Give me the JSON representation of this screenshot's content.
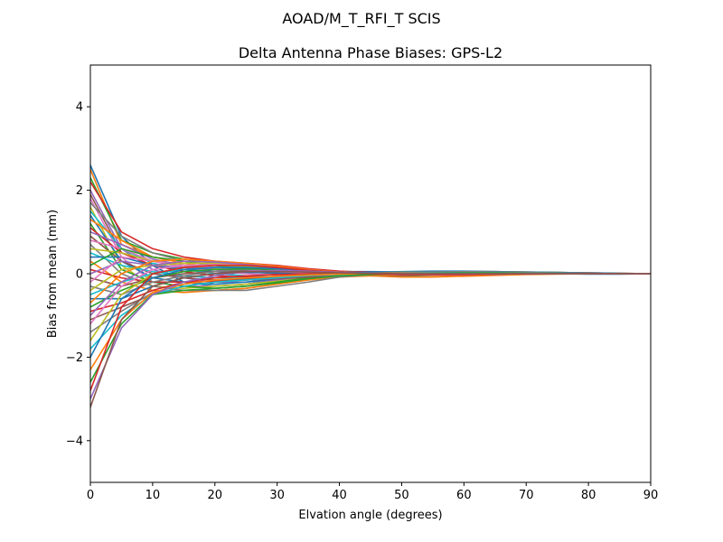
{
  "figure": {
    "suptitle": "AOAD/M_T_RFI_T  SCIS"
  },
  "chart_data": {
    "type": "line",
    "title": "Delta Antenna Phase Biases: GPS-L2",
    "xlabel": "Elvation angle (degrees)",
    "ylabel": "Bias from mean (mm)",
    "xlim": [
      0,
      90
    ],
    "ylim": [
      -5,
      5
    ],
    "xticks": [
      0,
      10,
      20,
      30,
      40,
      50,
      60,
      70,
      80,
      90
    ],
    "yticks": [
      -4,
      -2,
      0,
      2,
      4
    ],
    "ytick_labels": [
      "−4",
      "−2",
      "0",
      "2",
      "4"
    ],
    "grid": false,
    "legend": "none",
    "x": [
      0,
      5,
      10,
      15,
      20,
      25,
      30,
      35,
      40,
      45,
      50,
      55,
      60,
      65,
      70,
      75,
      80,
      85,
      90
    ],
    "palette": [
      "#1f77b4",
      "#ff7f0e",
      "#2ca02c",
      "#d62728",
      "#9467bd",
      "#8c564b",
      "#e377c2",
      "#7f7f7f",
      "#bcbd22",
      "#17becf"
    ],
    "series": [
      {
        "values": [
          2.6,
          0.9,
          0.2,
          -0.2,
          -0.3,
          -0.25,
          -0.15,
          -0.05,
          0.05,
          0.05,
          0.04,
          0.03,
          0.03,
          0.02,
          0.01,
          0.0,
          -0.01,
          -0.01,
          0.0
        ]
      },
      {
        "values": [
          2.5,
          0.7,
          0.4,
          0.3,
          0.2,
          0.15,
          0.1,
          0.05,
          0.0,
          -0.05,
          -0.08,
          -0.08,
          -0.06,
          -0.04,
          -0.02,
          -0.01,
          0.0,
          0.0,
          0.0
        ]
      },
      {
        "values": [
          2.3,
          0.8,
          0.5,
          0.35,
          0.25,
          0.2,
          0.15,
          0.1,
          0.05,
          0.02,
          0.0,
          0.0,
          0.01,
          0.01,
          0.01,
          0.01,
          0.0,
          0.0,
          0.0
        ]
      },
      {
        "values": [
          2.2,
          1.0,
          0.6,
          0.4,
          0.3,
          0.25,
          0.2,
          0.12,
          0.06,
          0.03,
          0.03,
          0.04,
          0.05,
          0.05,
          0.04,
          0.03,
          0.02,
          0.01,
          0.0
        ]
      },
      {
        "values": [
          2.0,
          0.6,
          0.1,
          -0.1,
          -0.2,
          -0.2,
          -0.15,
          -0.08,
          -0.02,
          0.0,
          0.02,
          0.03,
          0.03,
          0.03,
          0.02,
          0.01,
          0.0,
          0.0,
          0.0
        ]
      },
      {
        "values": [
          1.9,
          0.5,
          0.3,
          0.2,
          0.1,
          0.05,
          0.0,
          -0.02,
          -0.04,
          -0.05,
          -0.05,
          -0.04,
          -0.03,
          -0.02,
          -0.01,
          0.0,
          0.0,
          0.0,
          0.0
        ]
      },
      {
        "values": [
          1.8,
          0.4,
          -0.2,
          -0.3,
          -0.3,
          -0.25,
          -0.2,
          -0.12,
          -0.06,
          -0.03,
          -0.02,
          -0.02,
          -0.02,
          -0.01,
          -0.01,
          0.0,
          0.0,
          0.0,
          0.0
        ]
      },
      {
        "values": [
          1.7,
          0.9,
          0.5,
          0.3,
          0.2,
          0.1,
          0.05,
          0.02,
          0.0,
          -0.02,
          -0.03,
          -0.03,
          -0.02,
          -0.01,
          0.0,
          0.0,
          0.0,
          0.0,
          0.0
        ]
      },
      {
        "values": [
          1.6,
          0.2,
          -0.3,
          -0.35,
          -0.3,
          -0.25,
          -0.18,
          -0.1,
          -0.04,
          0.0,
          0.02,
          0.04,
          0.05,
          0.05,
          0.04,
          0.03,
          0.02,
          0.01,
          0.0
        ]
      },
      {
        "values": [
          1.5,
          0.6,
          0.25,
          0.1,
          0.0,
          -0.05,
          -0.08,
          -0.08,
          -0.05,
          -0.03,
          -0.01,
          0.0,
          0.01,
          0.01,
          0.01,
          0.0,
          0.0,
          0.0,
          0.0
        ]
      },
      {
        "values": [
          1.4,
          0.3,
          -0.1,
          -0.2,
          -0.25,
          -0.2,
          -0.12,
          -0.06,
          0.0,
          0.03,
          0.05,
          0.06,
          0.06,
          0.05,
          0.04,
          0.03,
          0.02,
          0.01,
          0.0
        ]
      },
      {
        "values": [
          1.3,
          0.8,
          0.4,
          0.25,
          0.15,
          0.1,
          0.06,
          0.03,
          0.0,
          -0.01,
          -0.02,
          -0.02,
          -0.01,
          0.0,
          0.0,
          0.0,
          0.0,
          0.0,
          0.0
        ]
      },
      {
        "values": [
          1.2,
          0.1,
          -0.2,
          -0.3,
          -0.35,
          -0.3,
          -0.2,
          -0.1,
          -0.05,
          -0.04,
          -0.04,
          -0.03,
          -0.02,
          -0.01,
          0.0,
          0.0,
          0.0,
          0.0,
          0.0
        ]
      },
      {
        "values": [
          1.1,
          0.5,
          0.2,
          0.05,
          -0.05,
          -0.08,
          -0.08,
          -0.05,
          -0.02,
          0.0,
          0.02,
          0.03,
          0.03,
          0.02,
          0.02,
          0.01,
          0.0,
          0.0,
          0.0
        ]
      },
      {
        "values": [
          1.0,
          0.7,
          0.35,
          0.2,
          0.1,
          0.05,
          0.02,
          0.0,
          -0.02,
          -0.03,
          -0.03,
          -0.02,
          -0.01,
          0.0,
          0.0,
          0.0,
          0.0,
          0.0,
          0.0
        ]
      },
      {
        "values": [
          0.9,
          0.3,
          0.0,
          -0.1,
          -0.15,
          -0.15,
          -0.12,
          -0.08,
          -0.04,
          -0.02,
          0.0,
          0.01,
          0.02,
          0.02,
          0.02,
          0.01,
          0.01,
          0.0,
          0.0
        ]
      },
      {
        "values": [
          0.8,
          0.6,
          0.3,
          0.15,
          0.05,
          0.0,
          -0.03,
          -0.04,
          -0.04,
          -0.03,
          -0.02,
          -0.01,
          0.0,
          0.0,
          0.0,
          0.0,
          0.0,
          0.0,
          0.0
        ]
      },
      {
        "values": [
          0.7,
          0.0,
          -0.3,
          -0.4,
          -0.4,
          -0.35,
          -0.25,
          -0.15,
          -0.06,
          -0.02,
          0.0,
          0.01,
          0.02,
          0.02,
          0.01,
          0.01,
          0.0,
          0.0,
          0.0
        ]
      },
      {
        "values": [
          0.6,
          0.5,
          0.3,
          0.2,
          0.12,
          0.08,
          0.05,
          0.03,
          0.02,
          0.02,
          0.03,
          0.03,
          0.03,
          0.02,
          0.02,
          0.01,
          0.0,
          0.0,
          0.0
        ]
      },
      {
        "values": [
          0.5,
          0.2,
          0.05,
          -0.05,
          -0.1,
          -0.1,
          -0.08,
          -0.05,
          -0.03,
          -0.02,
          -0.02,
          -0.02,
          -0.01,
          -0.01,
          0.0,
          0.0,
          0.0,
          0.0,
          0.0
        ]
      },
      {
        "values": [
          0.4,
          0.4,
          0.2,
          0.1,
          0.05,
          0.03,
          0.02,
          0.01,
          0.0,
          0.0,
          0.0,
          0.0,
          0.0,
          0.0,
          0.0,
          0.0,
          0.0,
          0.0,
          0.0
        ]
      },
      {
        "values": [
          0.3,
          -0.2,
          -0.4,
          -0.45,
          -0.4,
          -0.35,
          -0.25,
          -0.15,
          -0.08,
          -0.05,
          -0.03,
          -0.02,
          -0.01,
          0.0,
          0.0,
          0.0,
          0.0,
          0.0,
          0.0
        ]
      },
      {
        "values": [
          0.2,
          0.6,
          0.4,
          0.3,
          0.2,
          0.15,
          0.1,
          0.05,
          0.02,
          0.0,
          -0.01,
          -0.01,
          0.0,
          0.0,
          0.0,
          0.0,
          0.0,
          0.0,
          0.0
        ]
      },
      {
        "values": [
          0.1,
          -0.1,
          -0.2,
          -0.2,
          -0.18,
          -0.15,
          -0.1,
          -0.06,
          -0.03,
          -0.02,
          -0.01,
          0.0,
          0.0,
          0.0,
          0.0,
          0.0,
          0.0,
          0.0,
          0.0
        ]
      },
      {
        "values": [
          0.0,
          0.3,
          0.2,
          0.15,
          0.1,
          0.08,
          0.05,
          0.03,
          0.02,
          0.01,
          0.0,
          0.0,
          0.0,
          0.0,
          0.0,
          0.0,
          0.0,
          0.0,
          0.0
        ]
      },
      {
        "values": [
          -0.1,
          -0.3,
          -0.1,
          0.0,
          0.05,
          0.06,
          0.05,
          0.03,
          0.01,
          0.0,
          -0.01,
          -0.01,
          -0.01,
          0.0,
          0.0,
          0.0,
          0.0,
          0.0,
          0.0
        ]
      },
      {
        "values": [
          -0.2,
          0.4,
          0.3,
          0.2,
          0.15,
          0.1,
          0.05,
          0.02,
          0.0,
          -0.01,
          -0.02,
          -0.02,
          -0.01,
          -0.01,
          0.0,
          0.0,
          0.0,
          0.0,
          0.0
        ]
      },
      {
        "values": [
          -0.3,
          -0.5,
          -0.2,
          -0.05,
          0.05,
          0.1,
          0.1,
          0.06,
          0.03,
          0.02,
          0.02,
          0.02,
          0.02,
          0.02,
          0.01,
          0.01,
          0.0,
          0.0,
          0.0
        ]
      },
      {
        "values": [
          -0.4,
          0.1,
          0.2,
          0.25,
          0.25,
          0.22,
          0.15,
          0.08,
          0.03,
          0.0,
          -0.02,
          -0.02,
          -0.02,
          -0.01,
          0.0,
          0.0,
          0.0,
          0.0,
          0.0
        ]
      },
      {
        "values": [
          -0.5,
          -0.2,
          0.0,
          0.1,
          0.15,
          0.15,
          0.12,
          0.08,
          0.04,
          0.02,
          0.01,
          0.0,
          0.0,
          0.0,
          0.0,
          0.0,
          0.0,
          0.0,
          0.0
        ]
      },
      {
        "values": [
          -0.6,
          -0.6,
          -0.3,
          -0.1,
          0.0,
          0.05,
          0.06,
          0.05,
          0.03,
          0.02,
          0.01,
          0.01,
          0.01,
          0.0,
          0.0,
          0.0,
          0.0,
          0.0,
          0.0
        ]
      },
      {
        "values": [
          -0.7,
          0.0,
          0.3,
          0.35,
          0.3,
          0.25,
          0.18,
          0.1,
          0.04,
          0.0,
          -0.02,
          -0.03,
          -0.03,
          -0.02,
          -0.01,
          0.0,
          0.0,
          0.0,
          0.0
        ]
      },
      {
        "values": [
          -0.8,
          -0.4,
          -0.1,
          0.05,
          0.1,
          0.12,
          0.1,
          0.06,
          0.03,
          0.01,
          0.0,
          0.0,
          0.0,
          0.0,
          0.0,
          0.0,
          0.0,
          0.0,
          0.0
        ]
      },
      {
        "values": [
          -0.9,
          -0.7,
          -0.4,
          -0.2,
          -0.1,
          -0.05,
          -0.02,
          0.0,
          0.01,
          0.01,
          0.0,
          0.0,
          0.0,
          0.0,
          0.0,
          0.0,
          0.0,
          0.0,
          0.0
        ]
      },
      {
        "values": [
          -1.0,
          -0.2,
          0.2,
          0.3,
          0.28,
          0.22,
          0.15,
          0.08,
          0.03,
          0.0,
          -0.02,
          -0.02,
          -0.02,
          -0.01,
          0.0,
          0.0,
          0.0,
          0.0,
          0.0
        ]
      },
      {
        "values": [
          -1.1,
          -0.8,
          -0.5,
          -0.3,
          -0.2,
          -0.12,
          -0.06,
          -0.02,
          0.0,
          0.01,
          0.02,
          0.02,
          0.02,
          0.01,
          0.01,
          0.0,
          0.0,
          0.0,
          0.0
        ]
      },
      {
        "values": [
          -1.2,
          -0.3,
          0.1,
          0.2,
          0.22,
          0.2,
          0.14,
          0.08,
          0.03,
          0.0,
          -0.01,
          -0.02,
          -0.02,
          -0.01,
          0.0,
          0.0,
          0.0,
          0.0,
          0.0
        ]
      },
      {
        "values": [
          -1.4,
          -0.9,
          -0.45,
          -0.4,
          -0.4,
          -0.4,
          -0.3,
          -0.2,
          -0.08,
          -0.02,
          0.02,
          0.04,
          0.05,
          0.04,
          0.03,
          0.02,
          0.01,
          0.0,
          0.0
        ]
      },
      {
        "values": [
          -1.6,
          -0.5,
          0.0,
          0.15,
          0.2,
          0.18,
          0.12,
          0.06,
          0.02,
          0.0,
          -0.01,
          -0.01,
          -0.01,
          0.0,
          0.0,
          0.0,
          0.0,
          0.0,
          0.0
        ]
      },
      {
        "values": [
          -1.8,
          -1.0,
          -0.5,
          -0.3,
          -0.2,
          -0.15,
          -0.1,
          -0.05,
          -0.02,
          0.0,
          0.01,
          0.02,
          0.02,
          0.02,
          0.01,
          0.01,
          0.0,
          0.0,
          0.0
        ]
      },
      {
        "values": [
          -2.0,
          -0.6,
          -0.1,
          0.1,
          0.15,
          0.15,
          0.12,
          0.07,
          0.03,
          0.01,
          0.0,
          0.0,
          0.0,
          0.0,
          0.0,
          0.0,
          0.0,
          0.0,
          0.0
        ]
      },
      {
        "values": [
          -2.3,
          -1.1,
          -0.45,
          -0.25,
          -0.15,
          -0.1,
          -0.06,
          -0.03,
          -0.01,
          0.0,
          0.01,
          0.01,
          0.01,
          0.01,
          0.0,
          0.0,
          0.0,
          0.0,
          0.0
        ]
      },
      {
        "values": [
          -2.6,
          -1.2,
          -0.5,
          -0.4,
          -0.35,
          -0.3,
          -0.22,
          -0.12,
          -0.05,
          -0.02,
          0.0,
          0.01,
          0.02,
          0.02,
          0.01,
          0.01,
          0.0,
          0.0,
          0.0
        ]
      },
      {
        "values": [
          -2.8,
          -0.8,
          0.0,
          0.15,
          0.2,
          0.2,
          0.15,
          0.08,
          0.03,
          0.0,
          -0.02,
          -0.02,
          -0.02,
          -0.01,
          0.0,
          0.0,
          0.0,
          0.0,
          0.0
        ]
      },
      {
        "values": [
          -3.0,
          -1.3,
          -0.5,
          -0.2,
          -0.05,
          0.05,
          0.08,
          0.06,
          0.03,
          0.01,
          0.0,
          0.0,
          0.0,
          0.0,
          0.0,
          0.0,
          0.0,
          0.0,
          0.0
        ]
      },
      {
        "values": [
          -3.2,
          -1.1,
          -0.3,
          -0.1,
          0.0,
          0.05,
          0.05,
          0.04,
          0.02,
          0.01,
          0.0,
          0.0,
          0.0,
          0.0,
          0.0,
          0.0,
          0.0,
          0.0,
          0.0
        ]
      }
    ]
  }
}
